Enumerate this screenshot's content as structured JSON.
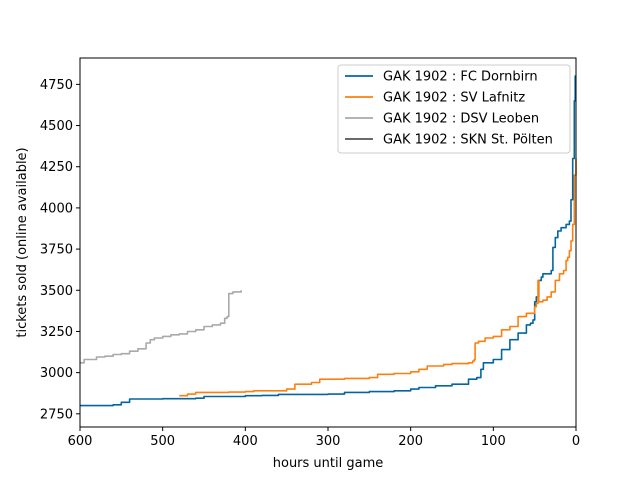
{
  "chart_data": {
    "type": "line",
    "title": "",
    "xlabel": "hours until game",
    "ylabel": "tickets sold (online available)",
    "xlim": [
      600,
      0
    ],
    "ylim": [
      2670,
      4910
    ],
    "x_inverted": true,
    "xticks": [
      600,
      500,
      400,
      300,
      200,
      100,
      0
    ],
    "yticks": [
      2750,
      3000,
      3250,
      3500,
      3750,
      4000,
      4250,
      4500,
      4750
    ],
    "grid": false,
    "legend_position": "upper right",
    "series": [
      {
        "name": "GAK 1902 : FC Dornbirn",
        "color": "#03669f",
        "points": [
          [
            600,
            2800
          ],
          [
            580,
            2800
          ],
          [
            560,
            2805
          ],
          [
            550,
            2820
          ],
          [
            540,
            2840
          ],
          [
            500,
            2842
          ],
          [
            460,
            2845
          ],
          [
            450,
            2855
          ],
          [
            400,
            2860
          ],
          [
            380,
            2862
          ],
          [
            360,
            2868
          ],
          [
            300,
            2870
          ],
          [
            280,
            2880
          ],
          [
            250,
            2885
          ],
          [
            220,
            2890
          ],
          [
            200,
            2900
          ],
          [
            190,
            2910
          ],
          [
            170,
            2920
          ],
          [
            150,
            2930
          ],
          [
            130,
            2960
          ],
          [
            120,
            2970
          ],
          [
            115,
            3020
          ],
          [
            112,
            3060
          ],
          [
            100,
            3080
          ],
          [
            90,
            3140
          ],
          [
            80,
            3200
          ],
          [
            70,
            3240
          ],
          [
            60,
            3290
          ],
          [
            55,
            3300
          ],
          [
            52,
            3320
          ],
          [
            50,
            3430
          ],
          [
            48,
            3460
          ],
          [
            45,
            3560
          ],
          [
            42,
            3580
          ],
          [
            40,
            3600
          ],
          [
            30,
            3620
          ],
          [
            28,
            3760
          ],
          [
            25,
            3820
          ],
          [
            22,
            3860
          ],
          [
            18,
            3880
          ],
          [
            12,
            3900
          ],
          [
            8,
            3920
          ],
          [
            6,
            4050
          ],
          [
            4,
            4300
          ],
          [
            2,
            4650
          ],
          [
            1,
            4800
          ],
          [
            0,
            4800
          ]
        ]
      },
      {
        "name": "GAK 1902 : SV Lafnitz",
        "color": "#ff7f0e",
        "points": [
          [
            480,
            2860
          ],
          [
            470,
            2870
          ],
          [
            460,
            2880
          ],
          [
            420,
            2882
          ],
          [
            400,
            2885
          ],
          [
            390,
            2890
          ],
          [
            350,
            2900
          ],
          [
            340,
            2930
          ],
          [
            320,
            2940
          ],
          [
            310,
            2960
          ],
          [
            280,
            2965
          ],
          [
            250,
            2970
          ],
          [
            240,
            2990
          ],
          [
            220,
            2995
          ],
          [
            200,
            3005
          ],
          [
            190,
            3020
          ],
          [
            180,
            3040
          ],
          [
            160,
            3050
          ],
          [
            150,
            3055
          ],
          [
            130,
            3060
          ],
          [
            125,
            3070
          ],
          [
            123,
            3080
          ],
          [
            122,
            3180
          ],
          [
            118,
            3190
          ],
          [
            110,
            3210
          ],
          [
            100,
            3220
          ],
          [
            90,
            3260
          ],
          [
            80,
            3280
          ],
          [
            70,
            3340
          ],
          [
            60,
            3360
          ],
          [
            50,
            3400
          ],
          [
            48,
            3420
          ],
          [
            46,
            3560
          ],
          [
            45,
            3430
          ],
          [
            40,
            3440
          ],
          [
            35,
            3460
          ],
          [
            30,
            3490
          ],
          [
            25,
            3560
          ],
          [
            20,
            3600
          ],
          [
            15,
            3620
          ],
          [
            12,
            3680
          ],
          [
            10,
            3700
          ],
          [
            8,
            3740
          ],
          [
            6,
            3800
          ],
          [
            4,
            3900
          ],
          [
            2,
            4200
          ],
          [
            0,
            4300
          ]
        ]
      },
      {
        "name": "GAK 1902 : DSV Leoben",
        "color": "#a9a9a9",
        "points": [
          [
            600,
            3060
          ],
          [
            595,
            3080
          ],
          [
            580,
            3095
          ],
          [
            570,
            3100
          ],
          [
            560,
            3110
          ],
          [
            550,
            3115
          ],
          [
            540,
            3130
          ],
          [
            530,
            3145
          ],
          [
            520,
            3180
          ],
          [
            515,
            3200
          ],
          [
            510,
            3210
          ],
          [
            500,
            3220
          ],
          [
            490,
            3230
          ],
          [
            480,
            3235
          ],
          [
            470,
            3250
          ],
          [
            460,
            3260
          ],
          [
            450,
            3280
          ],
          [
            440,
            3290
          ],
          [
            430,
            3300
          ],
          [
            425,
            3330
          ],
          [
            422,
            3340
          ],
          [
            420,
            3480
          ],
          [
            415,
            3490
          ],
          [
            410,
            3490
          ],
          [
            405,
            3500
          ]
        ]
      },
      {
        "name": "GAK 1902 : SKN St. Pölten",
        "color": "#555555",
        "points": []
      }
    ]
  }
}
